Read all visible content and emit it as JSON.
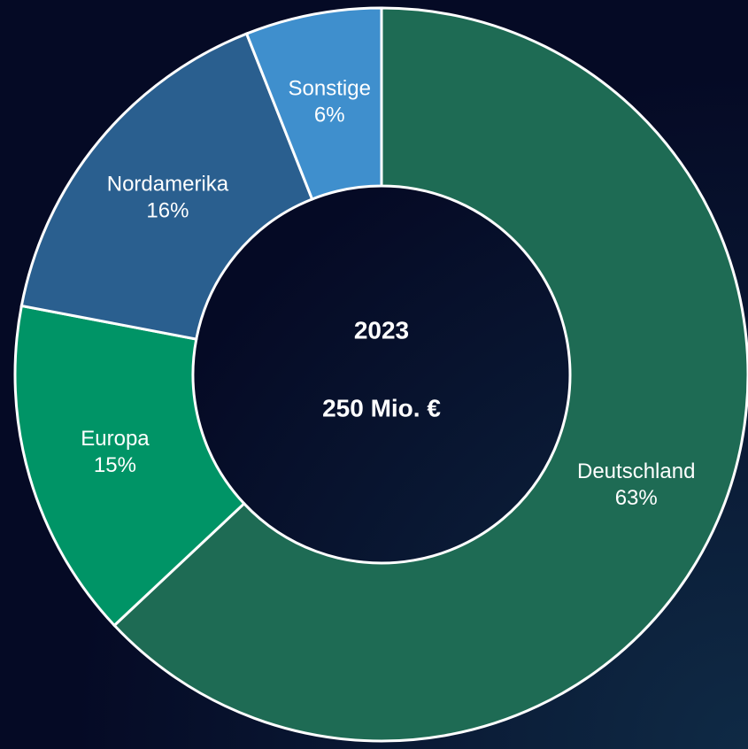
{
  "chart_data": {
    "type": "donut",
    "title": "2023",
    "subtitle": "250 Mio. €",
    "categories": [
      "Deutschland",
      "Europa",
      "Nordamerika",
      "Sonstige"
    ],
    "values": [
      63,
      15,
      16,
      6
    ],
    "value_labels": [
      "63%",
      "15%",
      "16%",
      "6%"
    ],
    "colors": [
      "#1e6b54",
      "#009466",
      "#2a5f8f",
      "#3f8fcd"
    ]
  }
}
